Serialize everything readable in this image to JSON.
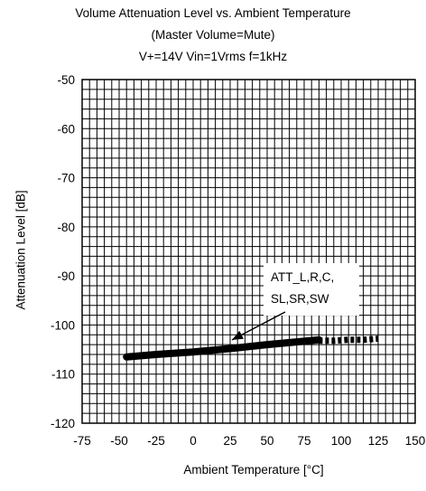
{
  "chart_data": {
    "type": "line",
    "title": "Volume  Attenuation Level vs. Ambient Temperature",
    "subtitle_lines": [
      "(Master Volume=Mute)",
      "V+=14V Vin=1Vrms f=1kHz"
    ],
    "xlabel": "Ambient Temperature [°C]",
    "ylabel": "Attenuation Level  [dB]",
    "xlim": [
      -75,
      150
    ],
    "ylim": [
      -120,
      -50
    ],
    "x_ticks": [
      -75,
      -50,
      -25,
      0,
      25,
      50,
      75,
      100,
      125,
      150
    ],
    "y_ticks": [
      -50,
      -60,
      -70,
      -80,
      -90,
      -100,
      -110,
      -120
    ],
    "x_tick_labels": [
      "-75",
      "-50",
      "-25",
      "0",
      "25",
      "50",
      "75",
      "100",
      "125",
      "150"
    ],
    "y_tick_labels": [
      "-50",
      "-60",
      "-70",
      "-80",
      "-90",
      "-100",
      "-110",
      "-120"
    ],
    "grid": true,
    "annotation": {
      "lines": [
        "ATT_L,R,C,",
        "SL,SR,SW"
      ],
      "arrow_to": [
        25,
        -104.5
      ]
    },
    "series": [
      {
        "style": "thick",
        "x": [
          -45,
          -25,
          0,
          25,
          50,
          75,
          85
        ],
        "y": [
          -106.5,
          -106.0,
          -105.5,
          -104.8,
          -104.0,
          -103.3,
          -103.0
        ]
      },
      {
        "style": "dashed",
        "x": [
          85,
          95,
          105,
          115,
          125
        ],
        "y": [
          -103.2,
          -103.2,
          -103.0,
          -103.0,
          -102.8
        ]
      }
    ]
  }
}
